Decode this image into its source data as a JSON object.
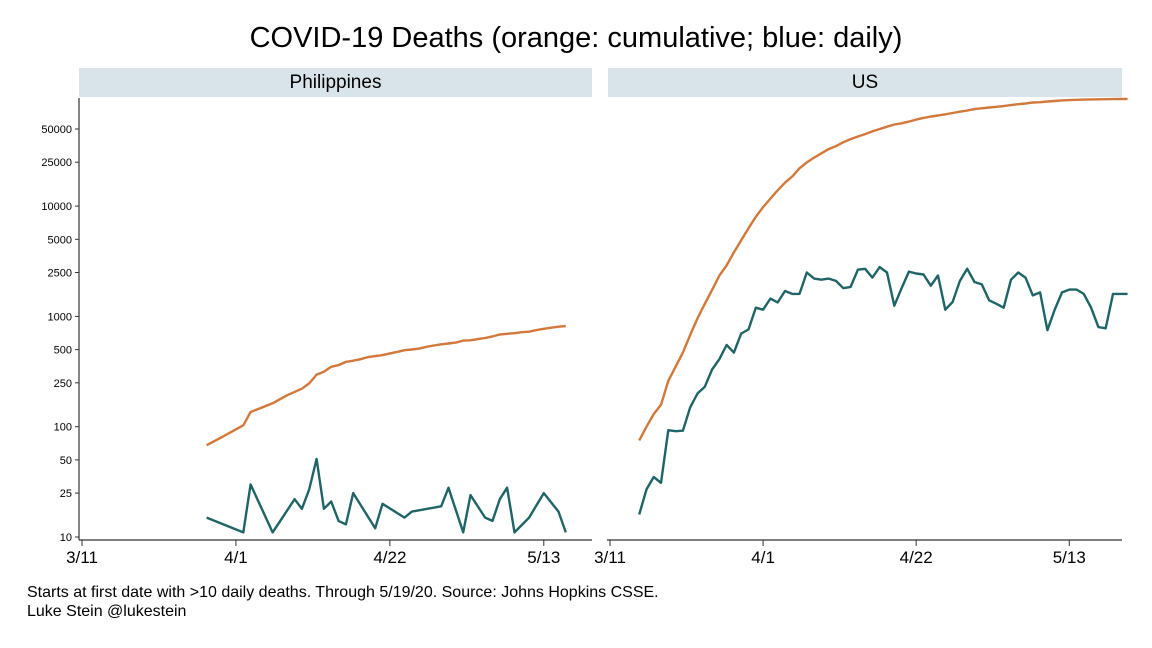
{
  "chart_data": {
    "type": "line",
    "title": "COVID-19 Deaths (orange: cumulative; blue: daily)",
    "yscale": "log",
    "ylim": [
      10,
      90000
    ],
    "yticks": [
      10,
      25,
      50,
      100,
      250,
      500,
      1000,
      2500,
      5000,
      10000,
      25000,
      50000
    ],
    "ytick_labels": [
      "10",
      "25",
      "50",
      "100",
      "250",
      "500",
      "1000",
      "2500",
      "5000",
      "10000",
      "25000",
      "50000"
    ],
    "xticks": [
      "3/11",
      "4/1",
      "4/22",
      "5/13"
    ],
    "xtick_days": [
      0,
      21,
      42,
      63
    ],
    "x_unit": "days since 3/11/2020",
    "colors": {
      "cumulative": "#d2783a",
      "daily": "#1f6466",
      "strip": "#d9e4ea"
    },
    "panels": [
      {
        "name": "Philippines",
        "series": [
          {
            "name": "cumulative",
            "x": [
              17,
              19,
              22,
              23,
              26,
              28,
              30,
              31,
              32,
              33,
              34,
              35,
              36,
              37,
              38,
              39,
              40,
              41,
              42,
              43,
              44,
              45,
              46,
              47,
              48,
              49,
              50,
              51,
              52,
              53,
              54,
              55,
              56,
              57,
              58,
              59,
              60,
              61,
              62,
              63,
              64,
              65,
              66
            ],
            "values": [
              68,
              80,
              103,
              136,
              163,
              193,
              221,
              247,
              297,
              315,
              349,
              362,
              387,
              397,
              409,
              428,
              437,
              446,
              462,
              477,
              494,
              501,
              511,
              530,
              545,
              558,
              568,
              579,
              603,
              607,
              623,
              637,
              658,
              685,
              696,
              704,
              719,
              726,
              751,
              772,
              790,
              806,
              817
            ]
          },
          {
            "name": "daily",
            "x": [
              17,
              22,
              23,
              26,
              29,
              30,
              31,
              32,
              33,
              34,
              35,
              36,
              37,
              40,
              41,
              44,
              45,
              49,
              50,
              52,
              53,
              55,
              56,
              57,
              58,
              59,
              61,
              63,
              65,
              66
            ],
            "values": [
              15,
              11,
              30,
              11,
              22,
              18,
              27,
              51,
              18,
              21,
              14,
              13,
              25,
              12,
              20,
              15,
              17,
              19,
              28,
              11,
              24,
              15,
              14,
              22,
              28,
              11,
              15,
              25,
              17,
              11
            ]
          }
        ]
      },
      {
        "name": "US",
        "series": [
          {
            "name": "cumulative",
            "x": [
              4,
              5,
              6,
              7,
              8,
              9,
              10,
              11,
              12,
              13,
              14,
              15,
              16,
              17,
              18,
              19,
              20,
              21,
              22,
              23,
              24,
              25,
              26,
              27,
              28,
              29,
              30,
              31,
              32,
              33,
              34,
              35,
              36,
              37,
              38,
              39,
              40,
              41,
              42,
              43,
              44,
              45,
              46,
              47,
              48,
              49,
              50,
              51,
              52,
              53,
              54,
              55,
              56,
              57,
              58,
              59,
              60,
              61,
              62,
              63,
              64,
              65,
              66,
              67,
              68,
              69,
              70,
              71
            ],
            "values": [
              75,
              100,
              130,
              158,
              260,
              350,
              470,
              680,
              960,
              1300,
              1740,
              2350,
              2900,
              3800,
              4900,
              6300,
              8000,
              9800,
              11700,
              13900,
              16300,
              18600,
              22000,
              24900,
              27500,
              30100,
              32900,
              35000,
              37900,
              40500,
              42800,
              45000,
              47600,
              50000,
              52500,
              54900,
              56300,
              58300,
              60900,
              63000,
              64900,
              66300,
              67900,
              69800,
              71800,
              73400,
              75700,
              77000,
              78300,
              79500,
              80700,
              82300,
              83900,
              85200,
              86900,
              87500,
              88800,
              89700,
              90800,
              91400,
              92000,
              92300,
              92800,
              93000,
              93200,
              93400,
              93600,
              93800
            ]
          },
          {
            "name": "daily",
            "x": [
              4,
              5,
              6,
              7,
              8,
              9,
              10,
              11,
              12,
              13,
              14,
              15,
              16,
              17,
              18,
              19,
              20,
              21,
              22,
              23,
              24,
              25,
              26,
              27,
              28,
              29,
              30,
              31,
              32,
              33,
              34,
              35,
              36,
              37,
              38,
              39,
              40,
              41,
              42,
              43,
              44,
              45,
              46,
              47,
              48,
              49,
              50,
              51,
              52,
              53,
              54,
              55,
              56,
              57,
              58,
              59,
              60,
              61,
              62,
              63,
              64,
              65,
              66,
              67,
              68,
              69,
              70,
              71
            ],
            "values": [
              16,
              27,
              35,
              31,
              93,
              91,
              92,
              150,
              200,
              230,
              330,
              410,
              550,
              470,
              700,
              760,
              1200,
              1150,
              1450,
              1340,
              1700,
              1600,
              1600,
              2500,
              2200,
              2150,
              2200,
              2100,
              1800,
              1850,
              2650,
              2700,
              2250,
              2800,
              2500,
              1250,
              1800,
              2550,
              2450,
              2400,
              1900,
              2350,
              1150,
              1350,
              2100,
              2700,
              2050,
              1950,
              1400,
              1300,
              1200,
              2150,
              2500,
              2250,
              1550,
              1650,
              750,
              1150,
              1650,
              1750,
              1750,
              1600,
              1200,
              800,
              780,
              1600,
              1600,
              1600
            ]
          }
        ]
      }
    ]
  },
  "notes": {
    "line1": "Starts at first date with >10 daily deaths. Through 5/19/20. Source: Johns Hopkins CSSE.",
    "line2": "Luke Stein @lukestein"
  }
}
